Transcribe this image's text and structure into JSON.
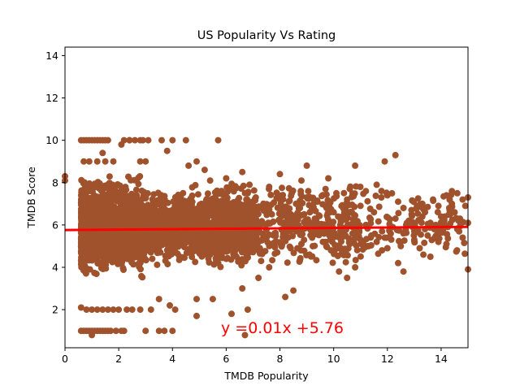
{
  "chart_data": {
    "type": "scatter",
    "title": "US Popularity Vs Rating",
    "xlabel": "TMDB Popularity",
    "ylabel": "TMDB Score",
    "xlim": [
      0,
      15
    ],
    "ylim": [
      0.2,
      14.4
    ],
    "x_ticks": [
      0,
      2,
      4,
      6,
      8,
      10,
      12,
      14
    ],
    "y_ticks": [
      2,
      4,
      6,
      8,
      10,
      12,
      14
    ],
    "grid": false,
    "legend": "none",
    "point_color": "#a0522d",
    "line_color": "#ff0000",
    "annotation": "y =0.01x +5.76",
    "regression": {
      "slope": 0.01,
      "intercept": 5.76,
      "x_range": [
        0,
        15
      ]
    },
    "series": [
      {
        "points": [
          [
            0.0,
            8.1
          ],
          [
            0.0,
            8.3
          ],
          [
            0.6,
            10.0
          ],
          [
            0.7,
            10.0
          ],
          [
            0.8,
            10.0
          ],
          [
            0.9,
            10.0
          ],
          [
            1.0,
            10.0
          ],
          [
            1.1,
            10.0
          ],
          [
            1.2,
            10.0
          ],
          [
            1.3,
            10.0
          ],
          [
            1.4,
            10.0
          ],
          [
            1.5,
            10.0
          ],
          [
            1.6,
            10.0
          ],
          [
            2.2,
            10.0
          ],
          [
            2.4,
            10.0
          ],
          [
            2.6,
            10.0
          ],
          [
            2.8,
            10.0
          ],
          [
            2.9,
            10.0
          ],
          [
            3.1,
            10.0
          ],
          [
            3.6,
            10.0
          ],
          [
            4.0,
            10.0
          ],
          [
            4.5,
            10.0
          ],
          [
            5.7,
            10.0
          ],
          [
            0.6,
            1.0
          ],
          [
            0.7,
            1.0
          ],
          [
            0.8,
            1.0
          ],
          [
            0.9,
            1.0
          ],
          [
            1.0,
            1.0
          ],
          [
            1.1,
            1.0
          ],
          [
            1.2,
            1.0
          ],
          [
            1.3,
            1.0
          ],
          [
            1.4,
            1.0
          ],
          [
            1.5,
            1.0
          ],
          [
            1.6,
            1.0
          ],
          [
            1.7,
            1.0
          ],
          [
            1.9,
            1.0
          ],
          [
            2.1,
            1.0
          ],
          [
            2.2,
            1.0
          ],
          [
            3.0,
            1.0
          ],
          [
            3.5,
            1.0
          ],
          [
            3.7,
            1.0
          ],
          [
            4.0,
            1.0
          ],
          [
            1.0,
            0.8
          ],
          [
            6.7,
            0.8
          ],
          [
            0.7,
            9.0
          ],
          [
            0.9,
            9.0
          ],
          [
            1.2,
            9.0
          ],
          [
            1.5,
            9.0
          ],
          [
            1.8,
            9.0
          ],
          [
            2.1,
            9.8
          ],
          [
            2.4,
            10.0
          ],
          [
            2.8,
            9.0
          ],
          [
            3.0,
            9.0
          ],
          [
            1.4,
            9.4
          ],
          [
            3.8,
            9.5
          ],
          [
            4.6,
            8.8
          ],
          [
            4.9,
            9.0
          ],
          [
            0.6,
            2.1
          ],
          [
            0.8,
            2.0
          ],
          [
            1.0,
            2.0
          ],
          [
            1.2,
            2.0
          ],
          [
            1.4,
            2.0
          ],
          [
            1.6,
            2.0
          ],
          [
            1.8,
            2.0
          ],
          [
            2.0,
            2.0
          ],
          [
            2.3,
            2.0
          ],
          [
            2.5,
            2.0
          ],
          [
            2.8,
            2.0
          ],
          [
            3.2,
            2.0
          ],
          [
            3.5,
            2.5
          ],
          [
            3.9,
            2.2
          ],
          [
            4.1,
            2.0
          ],
          [
            4.9,
            2.5
          ],
          [
            4.9,
            1.7
          ],
          [
            5.5,
            2.5
          ],
          [
            6.2,
            1.8
          ],
          [
            6.6,
            3.0
          ],
          [
            6.8,
            2.0
          ],
          [
            7.2,
            3.5
          ],
          [
            7.6,
            4.0
          ],
          [
            8.2,
            2.6
          ],
          [
            8.5,
            2.9
          ],
          [
            9.1,
            4.6
          ],
          [
            10.2,
            3.8
          ],
          [
            10.5,
            3.5
          ],
          [
            10.8,
            4.0
          ],
          [
            11.8,
            4.8
          ],
          [
            12.4,
            4.2
          ],
          [
            12.6,
            3.8
          ],
          [
            13.2,
            4.9
          ],
          [
            13.6,
            4.5
          ],
          [
            15.0,
            3.9
          ],
          [
            11.9,
            9.0
          ],
          [
            12.3,
            9.3
          ],
          [
            10.8,
            8.8
          ],
          [
            9.8,
            8.2
          ],
          [
            9.0,
            8.8
          ],
          [
            8.8,
            8.1
          ],
          [
            8.0,
            8.4
          ],
          [
            7.6,
            7.8
          ],
          [
            6.6,
            8.5
          ],
          [
            6.0,
            8.2
          ],
          [
            5.2,
            8.6
          ],
          [
            5.4,
            8.1
          ],
          [
            10.6,
            7.7
          ],
          [
            11.2,
            7.6
          ],
          [
            11.6,
            7.9
          ],
          [
            12.0,
            7.4
          ],
          [
            12.4,
            7.1
          ],
          [
            12.6,
            6.8
          ],
          [
            12.9,
            6.5
          ],
          [
            13.1,
            6.9
          ],
          [
            13.3,
            7.0
          ],
          [
            13.7,
            7.2
          ],
          [
            14.0,
            6.4
          ],
          [
            14.2,
            7.4
          ],
          [
            14.4,
            7.6
          ],
          [
            14.6,
            7.5
          ],
          [
            14.8,
            7.2
          ],
          [
            15.0,
            7.3
          ],
          [
            14.9,
            6.9
          ],
          [
            14.5,
            6.6
          ],
          [
            14.1,
            6.2
          ],
          [
            13.8,
            6.0
          ],
          [
            13.4,
            5.8
          ],
          [
            13.0,
            5.7
          ],
          [
            12.6,
            5.6
          ],
          [
            12.2,
            5.9
          ],
          [
            11.8,
            5.7
          ],
          [
            11.4,
            5.5
          ],
          [
            11.0,
            5.3
          ],
          [
            10.6,
            5.1
          ],
          [
            10.2,
            5.0
          ],
          [
            9.9,
            4.8
          ],
          [
            9.6,
            5.2
          ],
          [
            9.2,
            5.4
          ],
          [
            14.8,
            5.4
          ],
          [
            14.6,
            5.8
          ],
          [
            14.2,
            5.1
          ],
          [
            13.9,
            5.2
          ],
          [
            13.5,
            5.5
          ],
          [
            13.0,
            5.3
          ],
          [
            12.5,
            5.0
          ],
          [
            12.0,
            4.9
          ],
          [
            11.6,
            5.2
          ],
          [
            11.2,
            6.0
          ],
          [
            10.8,
            6.2
          ],
          [
            10.4,
            6.4
          ],
          [
            10.0,
            6.6
          ],
          [
            9.7,
            6.9
          ],
          [
            9.4,
            7.1
          ],
          [
            9.0,
            7.3
          ],
          [
            8.6,
            7.0
          ],
          [
            8.3,
            6.8
          ],
          [
            8.0,
            7.2
          ],
          [
            7.7,
            6.5
          ],
          [
            7.4,
            6.9
          ],
          [
            7.1,
            7.3
          ],
          [
            6.8,
            7.5
          ],
          [
            6.5,
            7.0
          ],
          [
            12.8,
            6.2
          ],
          [
            13.3,
            6.4
          ],
          [
            13.6,
            6.1
          ],
          [
            14.3,
            6.8
          ],
          [
            14.7,
            6.3
          ],
          [
            11.5,
            6.6
          ],
          [
            11.0,
            6.9
          ],
          [
            10.5,
            7.2
          ],
          [
            10.1,
            7.5
          ],
          [
            9.7,
            7.7
          ],
          [
            9.3,
            6.3
          ],
          [
            8.9,
            6.5
          ],
          [
            8.5,
            6.0
          ],
          [
            8.1,
            5.8
          ],
          [
            7.8,
            5.6
          ],
          [
            7.5,
            5.4
          ],
          [
            7.2,
            5.2
          ],
          [
            6.9,
            5.0
          ],
          [
            6.6,
            4.8
          ],
          [
            6.3,
            4.6
          ],
          [
            6.0,
            4.4
          ],
          [
            5.7,
            4.2
          ],
          [
            5.4,
            4.6
          ],
          [
            5.1,
            4.8
          ],
          [
            7.3,
            4.3
          ],
          [
            7.9,
            4.7
          ],
          [
            8.4,
            4.9
          ],
          [
            8.8,
            5.1
          ],
          [
            9.3,
            5.9
          ],
          [
            9.8,
            6.1
          ],
          [
            10.3,
            5.7
          ],
          [
            10.7,
            5.9
          ],
          [
            11.3,
            5.0
          ],
          [
            11.9,
            5.4
          ],
          [
            12.3,
            6.3
          ],
          [
            12.7,
            6.0
          ],
          [
            13.4,
            6.6
          ],
          [
            13.9,
            6.9
          ],
          [
            14.4,
            7.0
          ],
          [
            15.0,
            6.1
          ]
        ]
      }
    ]
  }
}
